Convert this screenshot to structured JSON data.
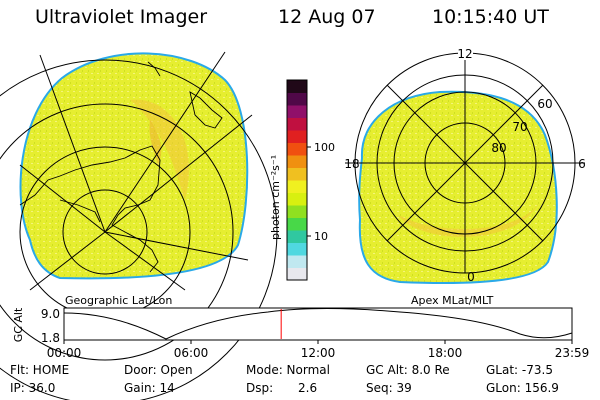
{
  "header": {
    "instrument": "Ultraviolet Imager",
    "date": "12 Aug 07",
    "time": "10:15:40 UT"
  },
  "left_panel": {
    "caption": "Geographic Lat/Lon"
  },
  "right_panel": {
    "caption": "Apex MLat/MLT",
    "mlt_labels": [
      "12",
      "18",
      "6",
      "0"
    ],
    "mlat_labels": [
      "60",
      "70",
      "80"
    ]
  },
  "colorbar": {
    "label": "photon cm⁻²s⁻¹",
    "ticks": [
      "100",
      "10"
    ],
    "colors": [
      "#e8e8ee",
      "#c0e8f0",
      "#50d8e0",
      "#30c8a0",
      "#48d848",
      "#90e020",
      "#d8f010",
      "#f0f020",
      "#f0c020",
      "#f09010",
      "#f05010",
      "#e02020",
      "#c01040",
      "#90106a",
      "#500848",
      "#200818"
    ]
  },
  "timeline": {
    "ylabel": "GC Alt",
    "ymax": "9.0",
    "ymin": "1.8",
    "ticks": [
      "00:00",
      "06:00",
      "12:00",
      "18:00",
      "23:59"
    ],
    "current_time_hours": 10.26,
    "marker_color": "#ff0000"
  },
  "status": {
    "flt": "Flt: HOME",
    "ip": "IP: 36.0",
    "door": "Door: Open",
    "gain": "Gain: 14",
    "mode": "Mode: Normal",
    "dsp_label": "Dsp:",
    "dsp_value": "2.6",
    "gcalt": "GC Alt: 8.0 Re",
    "seq": "Seq: 39",
    "glat": "GLat: -73.5",
    "glon": "GLon: 156.9"
  }
}
